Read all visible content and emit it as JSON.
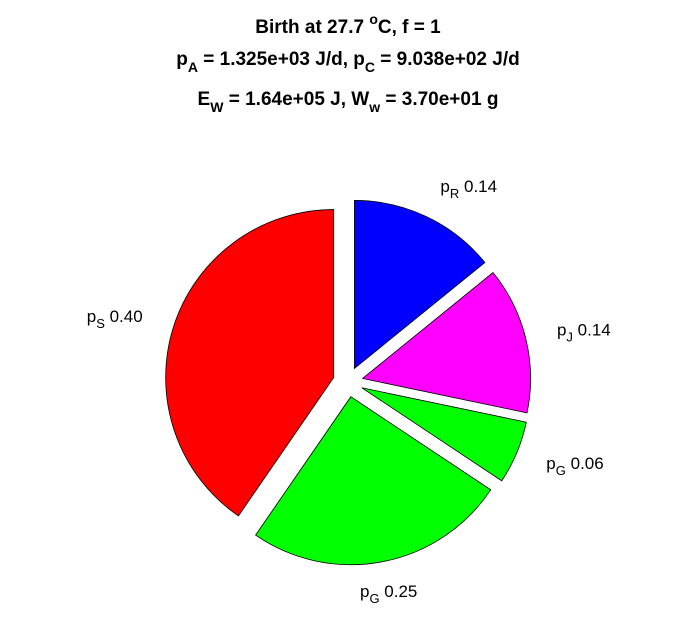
{
  "chart_data": {
    "type": "pie",
    "title": [
      [
        "Birth at 27.7 ",
        "o",
        "C, f = 1"
      ],
      [
        "p",
        "A",
        " = 1.325e+03 J/d, p",
        "C",
        " = 9.038e+02 J/d"
      ],
      [
        "E",
        "W",
        " = 1.64e+05 J, W",
        "w",
        " = 3.70e+01 g"
      ]
    ],
    "categories": [
      [
        "p",
        "R"
      ],
      [
        "p",
        "J"
      ],
      [
        "p",
        "G"
      ],
      [
        "p",
        "G"
      ],
      [
        "p",
        "S"
      ]
    ],
    "values": [
      0.14,
      0.14,
      0.06,
      0.25,
      0.4
    ],
    "value_labels": [
      "0.14",
      "0.14",
      "0.06",
      "0.25",
      "0.40"
    ],
    "colors": [
      "#0000ff",
      "#ff00ff",
      "#00ff00",
      "#00ff00",
      "#ff0000"
    ]
  }
}
